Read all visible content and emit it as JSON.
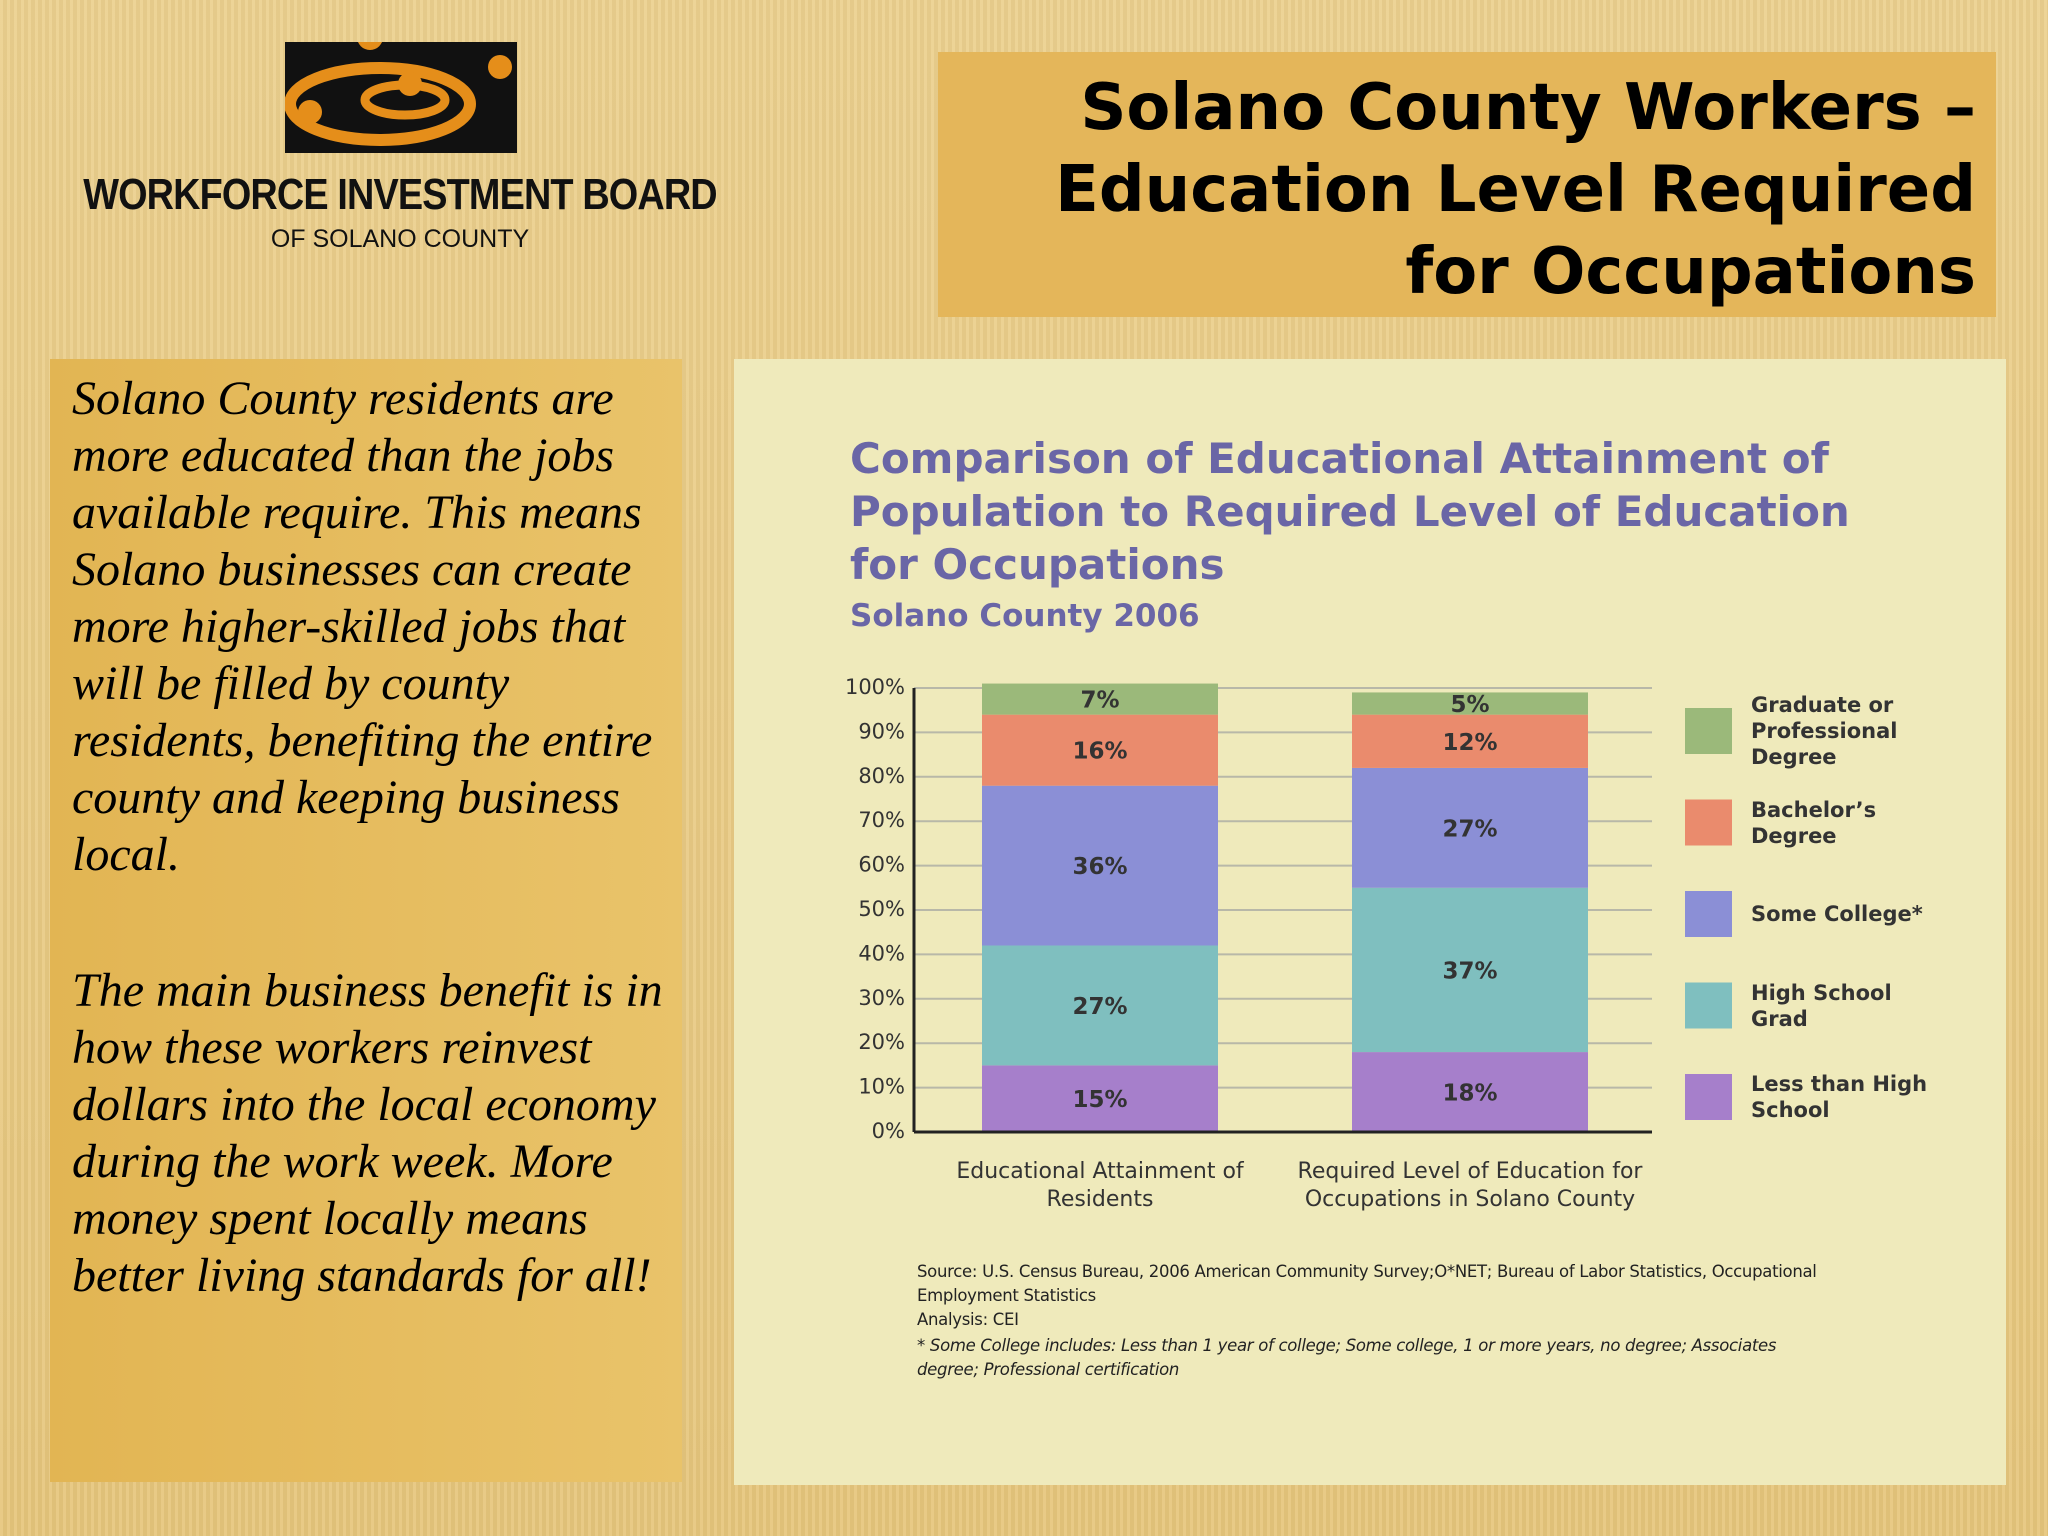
{
  "logo": {
    "name": "WORKFORCE INVESTMENT BOARD",
    "subname": "OF SOLANO COUNTY"
  },
  "slide_title_lines": [
    "Solano County Workers –",
    "Education Level Required",
    "for Occupations"
  ],
  "paragraphs": [
    "Solano County residents are more educated than the jobs available require. This means Solano businesses can create more higher-skilled jobs that will be filled by county residents, benefiting the entire county and keeping business local.",
    "The main business benefit is in how these workers reinvest dollars into the local economy during the work week. More money spent locally means better living standards for all!"
  ],
  "chart_data": {
    "type": "stacked-bar",
    "title": "Comparison of Educational Attainment of Population to Required Level of Education for Occupations",
    "subtitle": "Solano County 2006",
    "categories": [
      "Educational Attainment of Residents",
      "Required Level of Education for Occupations in Solano County"
    ],
    "series": [
      {
        "name": "Less than High School",
        "color": "#a67fcb",
        "values": [
          15,
          18
        ],
        "value_labels": [
          "15%",
          "18%"
        ]
      },
      {
        "name": "High School Grad",
        "color": "#7fbfbf",
        "values": [
          27,
          37
        ],
        "value_labels": [
          "27%",
          "37%"
        ]
      },
      {
        "name": "Some College*",
        "color": "#8b8fd6",
        "values": [
          36,
          27
        ],
        "value_labels": [
          "36%",
          "27%"
        ]
      },
      {
        "name": "Bachelor’s Degree",
        "color": "#ea8b6d",
        "values": [
          16,
          12
        ],
        "value_labels": [
          "16%",
          "12%"
        ]
      },
      {
        "name": "Graduate or Professional Degree",
        "color": "#9bb97a",
        "values": [
          7,
          5
        ],
        "value_labels": [
          "7%",
          "5%"
        ]
      }
    ],
    "ylim": [
      0,
      100
    ],
    "yticks": [
      {
        "value": 0,
        "label": "0%"
      },
      {
        "value": 10,
        "label": "10%"
      },
      {
        "value": 20,
        "label": "20%"
      },
      {
        "value": 30,
        "label": "30%"
      },
      {
        "value": 40,
        "label": "40%"
      },
      {
        "value": 50,
        "label": "50%"
      },
      {
        "value": 60,
        "label": "60%"
      },
      {
        "value": 70,
        "label": "70%"
      },
      {
        "value": 80,
        "label": "80%"
      },
      {
        "value": 90,
        "label": "90%"
      },
      {
        "value": 100,
        "label": "100%"
      }
    ],
    "grid": true,
    "legend": "right",
    "notes": [
      "Source: U.S. Census Bureau, 2006 American Community Survey;O*NET; Bureau of Labor Statistics, Occupational Employment Statistics",
      "Analysis: CEI",
      "* Some College includes: Less than 1 year of college; Some college, 1 or more years, no degree; Associates degree; Professional certification"
    ]
  }
}
